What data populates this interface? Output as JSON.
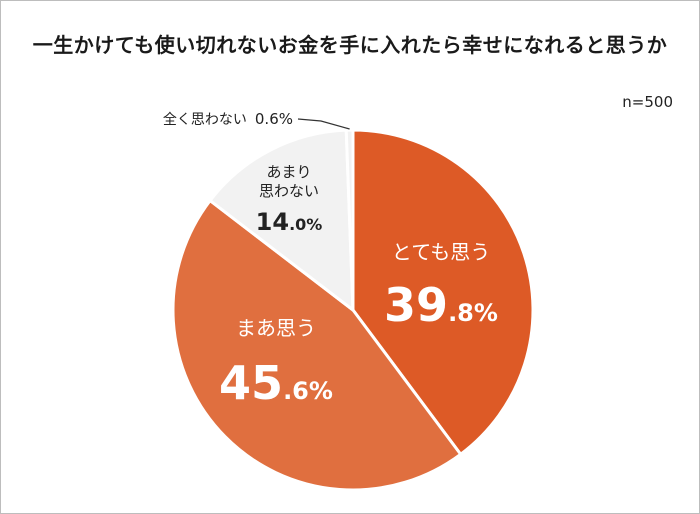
{
  "title": "一生かけても使い切れないお金を手に入れたら幸せになれると思うか",
  "sample_size": "n=500",
  "chart_data": {
    "type": "pie",
    "title": "一生かけても使い切れないお金を手に入れたら幸せになれると思うか",
    "start": "12 o'clock",
    "direction": "clockwise",
    "legend": "none",
    "slices": [
      {
        "label": "とても思う",
        "value": 39.8,
        "value_main": "39",
        "value_sub": ".8%",
        "color": "#dd5a26",
        "text_color": "#ffffff"
      },
      {
        "label": "まあ思う",
        "value": 45.6,
        "value_main": "45",
        "value_sub": ".6%",
        "color": "#e06f3f",
        "text_color": "#ffffff"
      },
      {
        "label": "あまり思わない",
        "label_lines": [
          "あまり",
          "思わない"
        ],
        "value": 14.0,
        "value_main": "14",
        "value_sub": ".0%",
        "color": "#f2f2f2",
        "text_color": "#222222"
      },
      {
        "label": "全く思わない",
        "value": 0.6,
        "value_text": "0.6%",
        "color": "#f2f2f2",
        "text_color": "#222222"
      }
    ]
  }
}
